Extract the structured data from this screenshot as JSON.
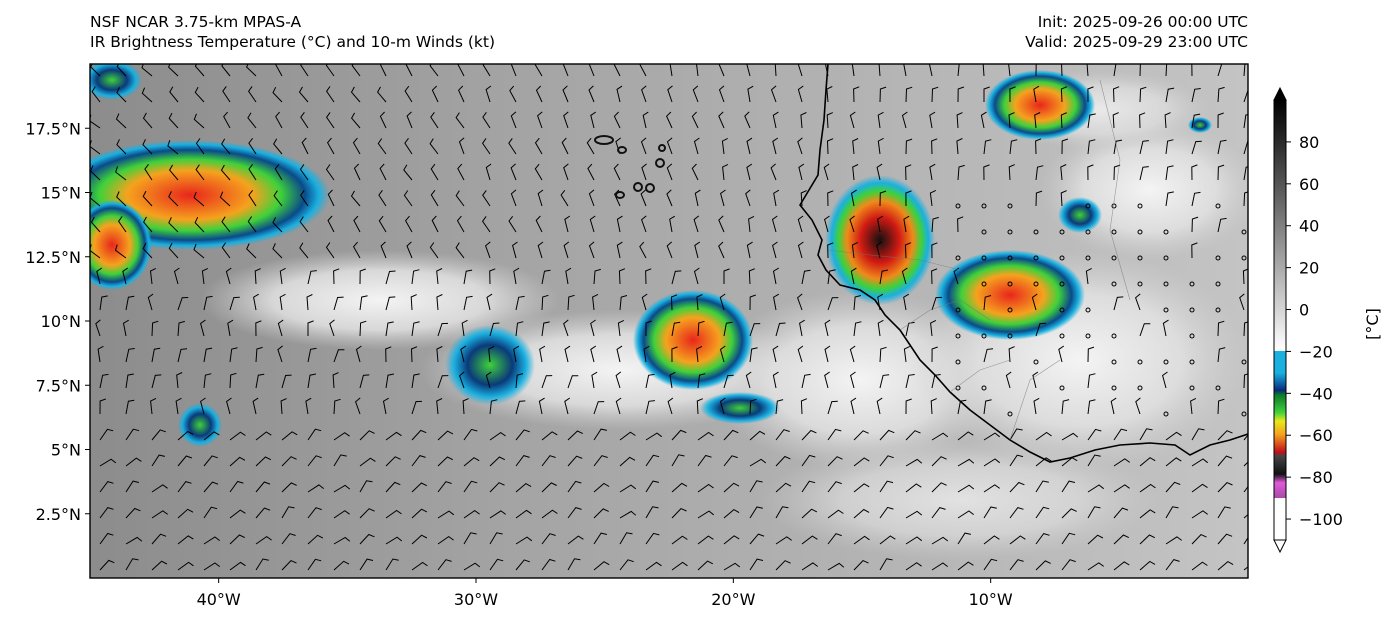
{
  "header": {
    "left_line1": "NSF NCAR 3.75-km MPAS-A",
    "left_line2": "IR Brightness Temperature (°C) and 10-m Winds (kt)",
    "right_line1": "Init: 2025-09-26 00:00 UTC",
    "right_line2": "Valid: 2025-09-29 23:00 UTC"
  },
  "map": {
    "lon_range": [
      -45,
      0
    ],
    "lat_range": [
      0,
      20
    ],
    "lon_ticks": [
      {
        "value": -40,
        "label": "40°W"
      },
      {
        "value": -30,
        "label": "30°W"
      },
      {
        "value": -20,
        "label": "20°W"
      },
      {
        "value": -10,
        "label": "10°W"
      }
    ],
    "lat_ticks": [
      {
        "value": 17.5,
        "label": "17.5°N"
      },
      {
        "value": 15,
        "label": "15°N"
      },
      {
        "value": 12.5,
        "label": "12.5°N"
      },
      {
        "value": 10,
        "label": "10°N"
      },
      {
        "value": 7.5,
        "label": "7.5°N"
      },
      {
        "value": 5,
        "label": "5°N"
      },
      {
        "value": 2.5,
        "label": "2.5°N"
      }
    ]
  },
  "colorbar": {
    "units_label": "[°C]",
    "range": [
      -110,
      100
    ],
    "ticks": [
      {
        "value": 80,
        "label": "80"
      },
      {
        "value": 60,
        "label": "60"
      },
      {
        "value": 40,
        "label": "40"
      },
      {
        "value": 20,
        "label": "20"
      },
      {
        "value": 0,
        "label": "0"
      },
      {
        "value": -20,
        "label": "−20"
      },
      {
        "value": -40,
        "label": "−40"
      },
      {
        "value": -60,
        "label": "−60"
      },
      {
        "value": -80,
        "label": "−80"
      },
      {
        "value": -100,
        "label": "−100"
      }
    ]
  },
  "colors": {
    "bg_gray": "#a8a8a8",
    "storm_red": "#e8261c",
    "storm_green": "#3fd13a",
    "storm_cyan": "#1ab0e0",
    "storm_dark": "#2a2a2a"
  }
}
